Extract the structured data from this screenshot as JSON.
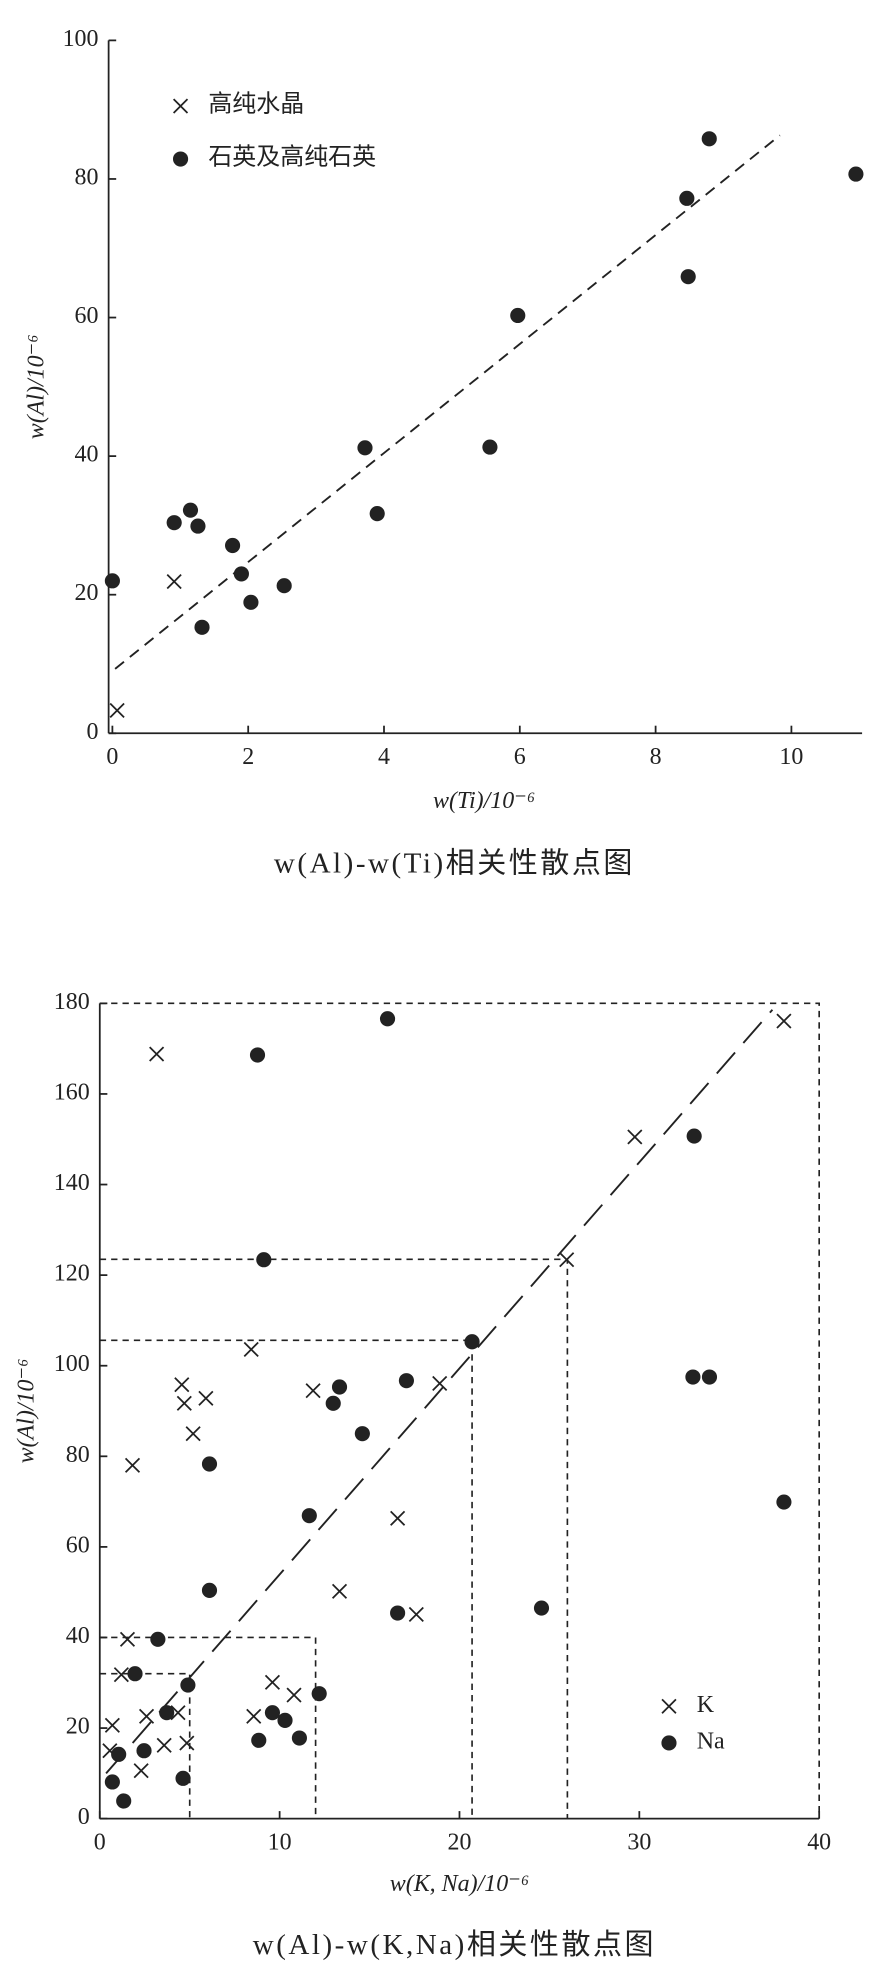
{
  "chart_data": [
    {
      "type": "scatter",
      "caption": "w(Al)-w(Ti)相关性散点图",
      "x_label": "w(Ti)/10⁻⁶",
      "y_label": "w(Al)/10⁻⁶",
      "xlim": [
        -0.05,
        11
      ],
      "ylim": [
        0,
        100
      ],
      "xticks": [
        0,
        2,
        4,
        6,
        8,
        10
      ],
      "yticks": [
        0,
        20,
        40,
        60,
        80,
        100
      ],
      "legend": "upper left",
      "series": [
        {
          "name": "高纯水晶",
          "marker": "x",
          "color": "#222222",
          "x": [
            0.07,
            0.91
          ],
          "values": [
            3.3,
            21.9
          ]
        },
        {
          "name": "石英及高纯石英",
          "marker": "o",
          "color": "#222222",
          "x": [
            0,
            0.91,
            1.15,
            1.26,
            1.32,
            1.77,
            1.9,
            2.04,
            2.53,
            3.72,
            3.9,
            5.56,
            5.97,
            8.46,
            8.48,
            8.79,
            10.95
          ],
          "values": [
            22,
            30.4,
            32.2,
            29.9,
            15.3,
            27.1,
            23,
            18.9,
            21.3,
            41.2,
            31.7,
            41.3,
            60.3,
            77.2,
            65.9,
            85.8,
            80.7
          ]
        }
      ],
      "trend_line": {
        "x": [
          0.04,
          9.83
        ],
        "y": [
          9.3,
          86.3
        ]
      }
    },
    {
      "type": "scatter",
      "caption": "w(Al)-w(K,Na)相关性散点图",
      "x_label": "w(K, Na)/10⁻⁶",
      "y_label": "w(Al)/10⁻⁶",
      "xlim": [
        0,
        40
      ],
      "ylim": [
        0,
        180
      ],
      "xticks": [
        0,
        10,
        20,
        30,
        40
      ],
      "yticks": [
        0,
        20,
        40,
        60,
        80,
        100,
        120,
        140,
        160,
        180
      ],
      "legend": "lower right",
      "series": [
        {
          "name": "K",
          "marker": "x",
          "color": "#222222",
          "x": [
            3.16,
            0.56,
            0.7,
            1.2,
            1.54,
            1.82,
            2.3,
            2.6,
            3.58,
            4.35,
            4.56,
            4.7,
            4.84,
            5.19,
            5.9,
            8.42,
            8.56,
            9.6,
            10.8,
            11.86,
            13.33,
            16.56,
            17.6,
            18.9,
            29.75,
            25.96,
            38.04
          ],
          "values": [
            168.8,
            15,
            20.6,
            31.8,
            39.6,
            78,
            10.6,
            22.6,
            16.2,
            23.4,
            95.8,
            91.7,
            16.7,
            85,
            92.8,
            103.6,
            22.6,
            30.1,
            27.3,
            94.5,
            50.2,
            66.3,
            45.1,
            96.1,
            150.5,
            123.4,
            176.1
          ]
        },
        {
          "name": "Na",
          "marker": "o",
          "color": "#222222",
          "x": [
            0.7,
            1.05,
            1.33,
            1.96,
            2.46,
            3.23,
            3.72,
            4.63,
            4.9,
            8.84,
            9.6,
            10.3,
            11.1,
            12.2,
            6.1,
            6.1,
            8.77,
            9.12,
            11.65,
            12.98,
            13.33,
            14.6,
            16.56,
            17.05,
            16,
            20.7,
            24.56,
            32.98,
            33.9,
            33.05,
            38.04
          ],
          "values": [
            8.1,
            14.2,
            3.9,
            32,
            15,
            39.6,
            23.4,
            8.9,
            29.5,
            17.3,
            23.4,
            21.7,
            17.8,
            27.6,
            50.4,
            78.3,
            168.6,
            123.4,
            66.9,
            91.7,
            95.3,
            85,
            45.4,
            96.7,
            176.6,
            105.3,
            46.5,
            97.5,
            97.5,
            150.7,
            69.9
          ]
        }
      ],
      "trend_line": {
        "x": [
          0.35,
          37.4
        ],
        "y": [
          10,
          178.6
        ]
      },
      "guide_boxes": [
        {
          "x": 5,
          "y": 32
        },
        {
          "x": 12,
          "y": 40
        },
        {
          "x": 20.7,
          "y": 105.6
        },
        {
          "x": 26,
          "y": 123.5
        },
        {
          "x": 40,
          "y": 180
        }
      ]
    }
  ]
}
